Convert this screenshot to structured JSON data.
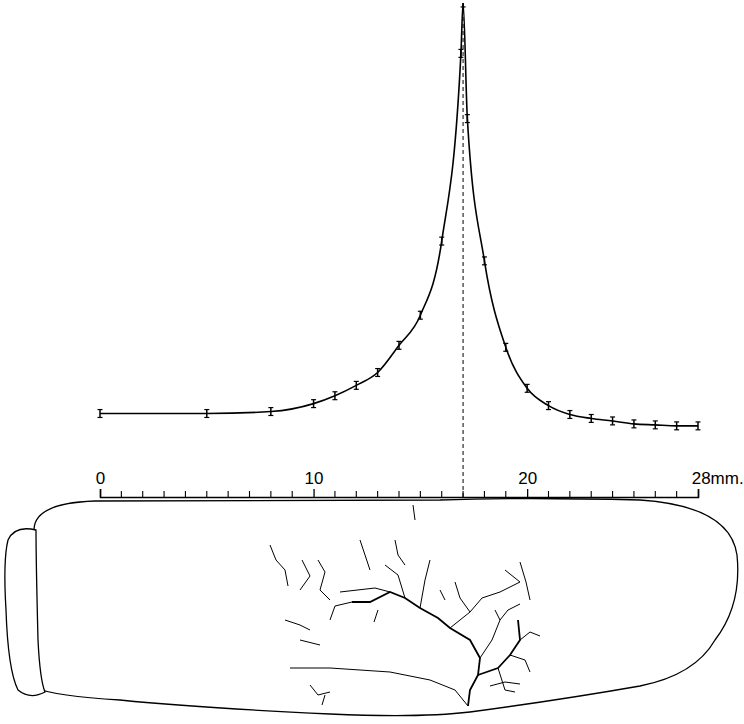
{
  "chart_data": {
    "type": "line",
    "x": [
      0,
      5,
      8,
      10,
      11,
      12,
      13,
      14,
      15,
      16,
      16.9,
      17,
      17.2,
      18,
      19,
      20,
      21,
      22,
      23,
      24,
      25,
      26,
      27,
      28
    ],
    "values": [
      16.9,
      16.9,
      17.3,
      18.9,
      20.5,
      22.6,
      25.2,
      30.7,
      36.8,
      51.8,
      89.8,
      100,
      76.6,
      47.8,
      30.3,
      22.0,
      18.5,
      16.7,
      15.9,
      15.4,
      14.8,
      14.6,
      14.4,
      14.4
    ],
    "errors": [
      0.8,
      0.8,
      0.8,
      0.8,
      0.8,
      0.8,
      0.8,
      0.8,
      0.8,
      0.8,
      0.8,
      0.8,
      0.8,
      0.8,
      0.8,
      0.8,
      0.8,
      0.8,
      0.8,
      0.8,
      0.8,
      0.8,
      0.8,
      0.8
    ],
    "xlim": [
      0,
      28
    ],
    "ylim": [
      0,
      100
    ],
    "xticks": [
      0,
      10,
      20,
      {
        "value": 28,
        "label": "28mm."
      }
    ],
    "minor_xticks": [
      1,
      2,
      3,
      4,
      5,
      6,
      7,
      8,
      9,
      11,
      12,
      13,
      14,
      15,
      16,
      17,
      18,
      19,
      21,
      22,
      23,
      24,
      25,
      26,
      27
    ],
    "peak_x": 17,
    "tick_labels": "x",
    "marker": "error-bar",
    "line_style": "solid",
    "color": "#000000",
    "grid": false
  }
}
